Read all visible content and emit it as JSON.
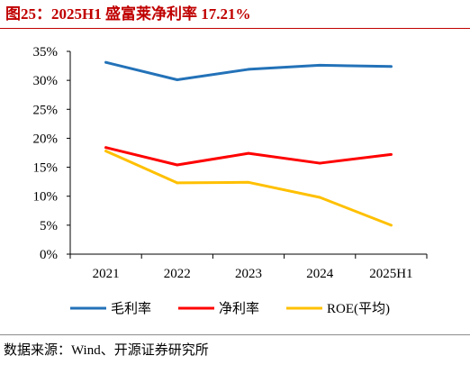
{
  "colors": {
    "title": "#C00000",
    "title_rule": "#C00000",
    "source_rule": "#8C8C8C",
    "axis": "#000000"
  },
  "source": "数据来源：Wind、开源证券研究所",
  "chart_data": {
    "type": "line",
    "title": "图25：2025H1 盛富莱净利率 17.21%",
    "categories": [
      "2021",
      "2022",
      "2023",
      "2024",
      "2025H1"
    ],
    "series": [
      {
        "name": "毛利率",
        "color": "#2372B8",
        "values": [
          33.1,
          30.1,
          31.9,
          32.6,
          32.4
        ]
      },
      {
        "name": "净利率",
        "color": "#FF0000",
        "values": [
          18.4,
          15.4,
          17.4,
          15.7,
          17.21
        ]
      },
      {
        "name": "ROE(平均)",
        "color": "#FFC000",
        "values": [
          17.8,
          12.3,
          12.4,
          9.8,
          5.0
        ]
      }
    ],
    "ylim": [
      0,
      35
    ],
    "y_ticks": [
      0,
      5,
      10,
      15,
      20,
      25,
      30,
      35
    ],
    "y_tick_labels": [
      "0%",
      "5%",
      "10%",
      "15%",
      "20%",
      "25%",
      "30%",
      "35%"
    ],
    "grid": false,
    "legend": "bottom"
  }
}
